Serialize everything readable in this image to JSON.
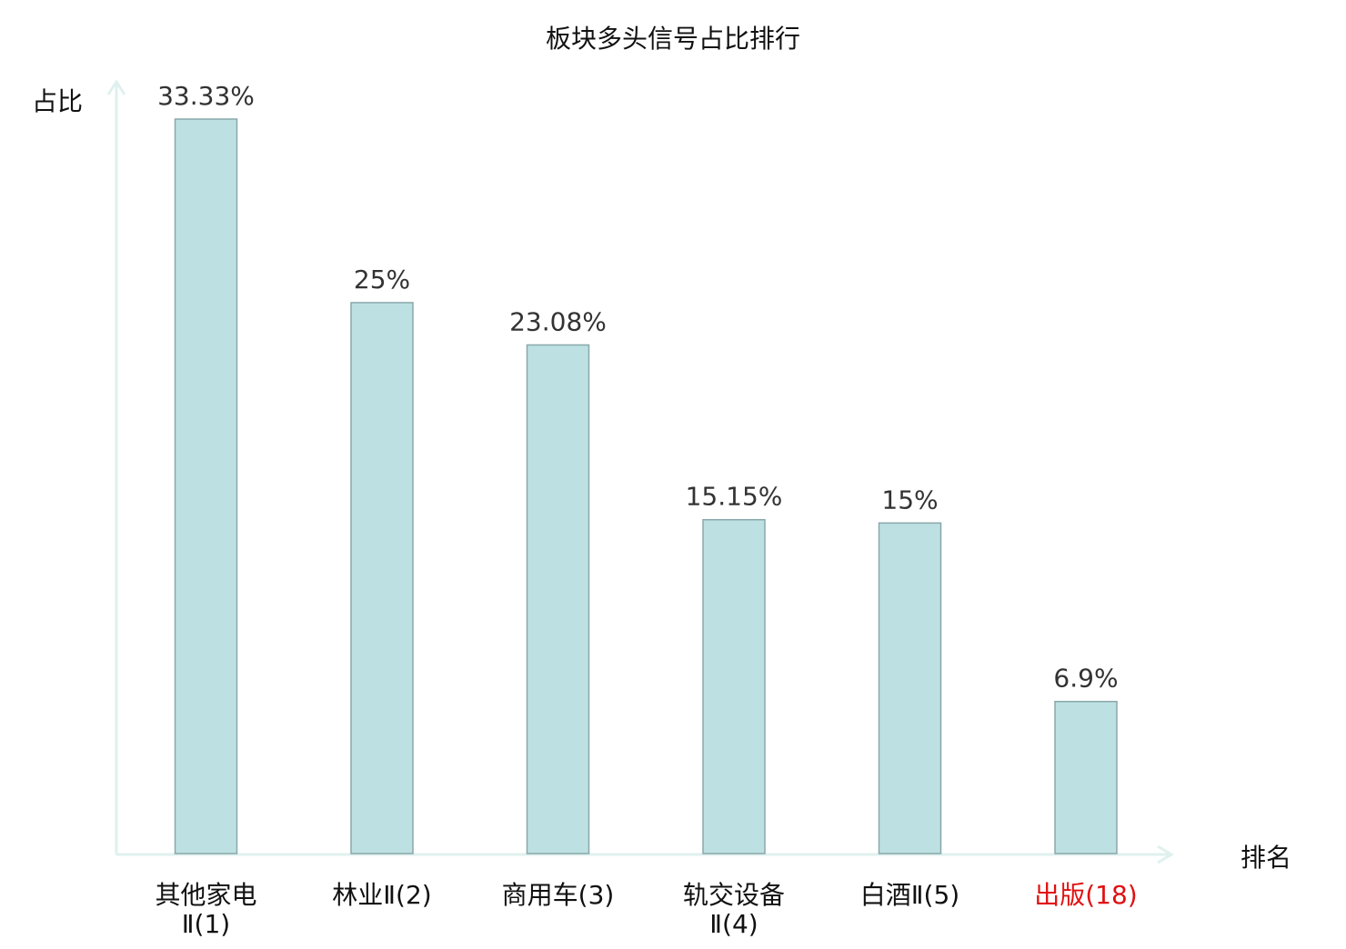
{
  "chart_data": {
    "type": "bar",
    "title": "板块多头信号占比排行",
    "ylabel": "占比",
    "xlabel": "排名",
    "categories": [
      [
        "其他家电",
        "Ⅱ(1)"
      ],
      [
        "林业Ⅱ(2)"
      ],
      [
        "商用车(3)"
      ],
      [
        "轨交设备",
        "Ⅱ(4)"
      ],
      [
        "白酒Ⅱ(5)"
      ],
      [
        "出版(18)"
      ]
    ],
    "values": [
      33.33,
      25,
      23.08,
      15.15,
      15,
      6.9
    ],
    "value_labels": [
      "33.33%",
      "25%",
      "23.08%",
      "15.15%",
      "15%",
      "6.9%"
    ],
    "highlighted_index": 5,
    "ylim": [
      0,
      33.33
    ],
    "grid": false,
    "colors": {
      "bar_fill": "#bde0e3",
      "bar_stroke": "#8aa8ab",
      "axis": "#dff1ee",
      "text": "#333333",
      "title": "#111111",
      "highlight": "#e01010"
    }
  }
}
